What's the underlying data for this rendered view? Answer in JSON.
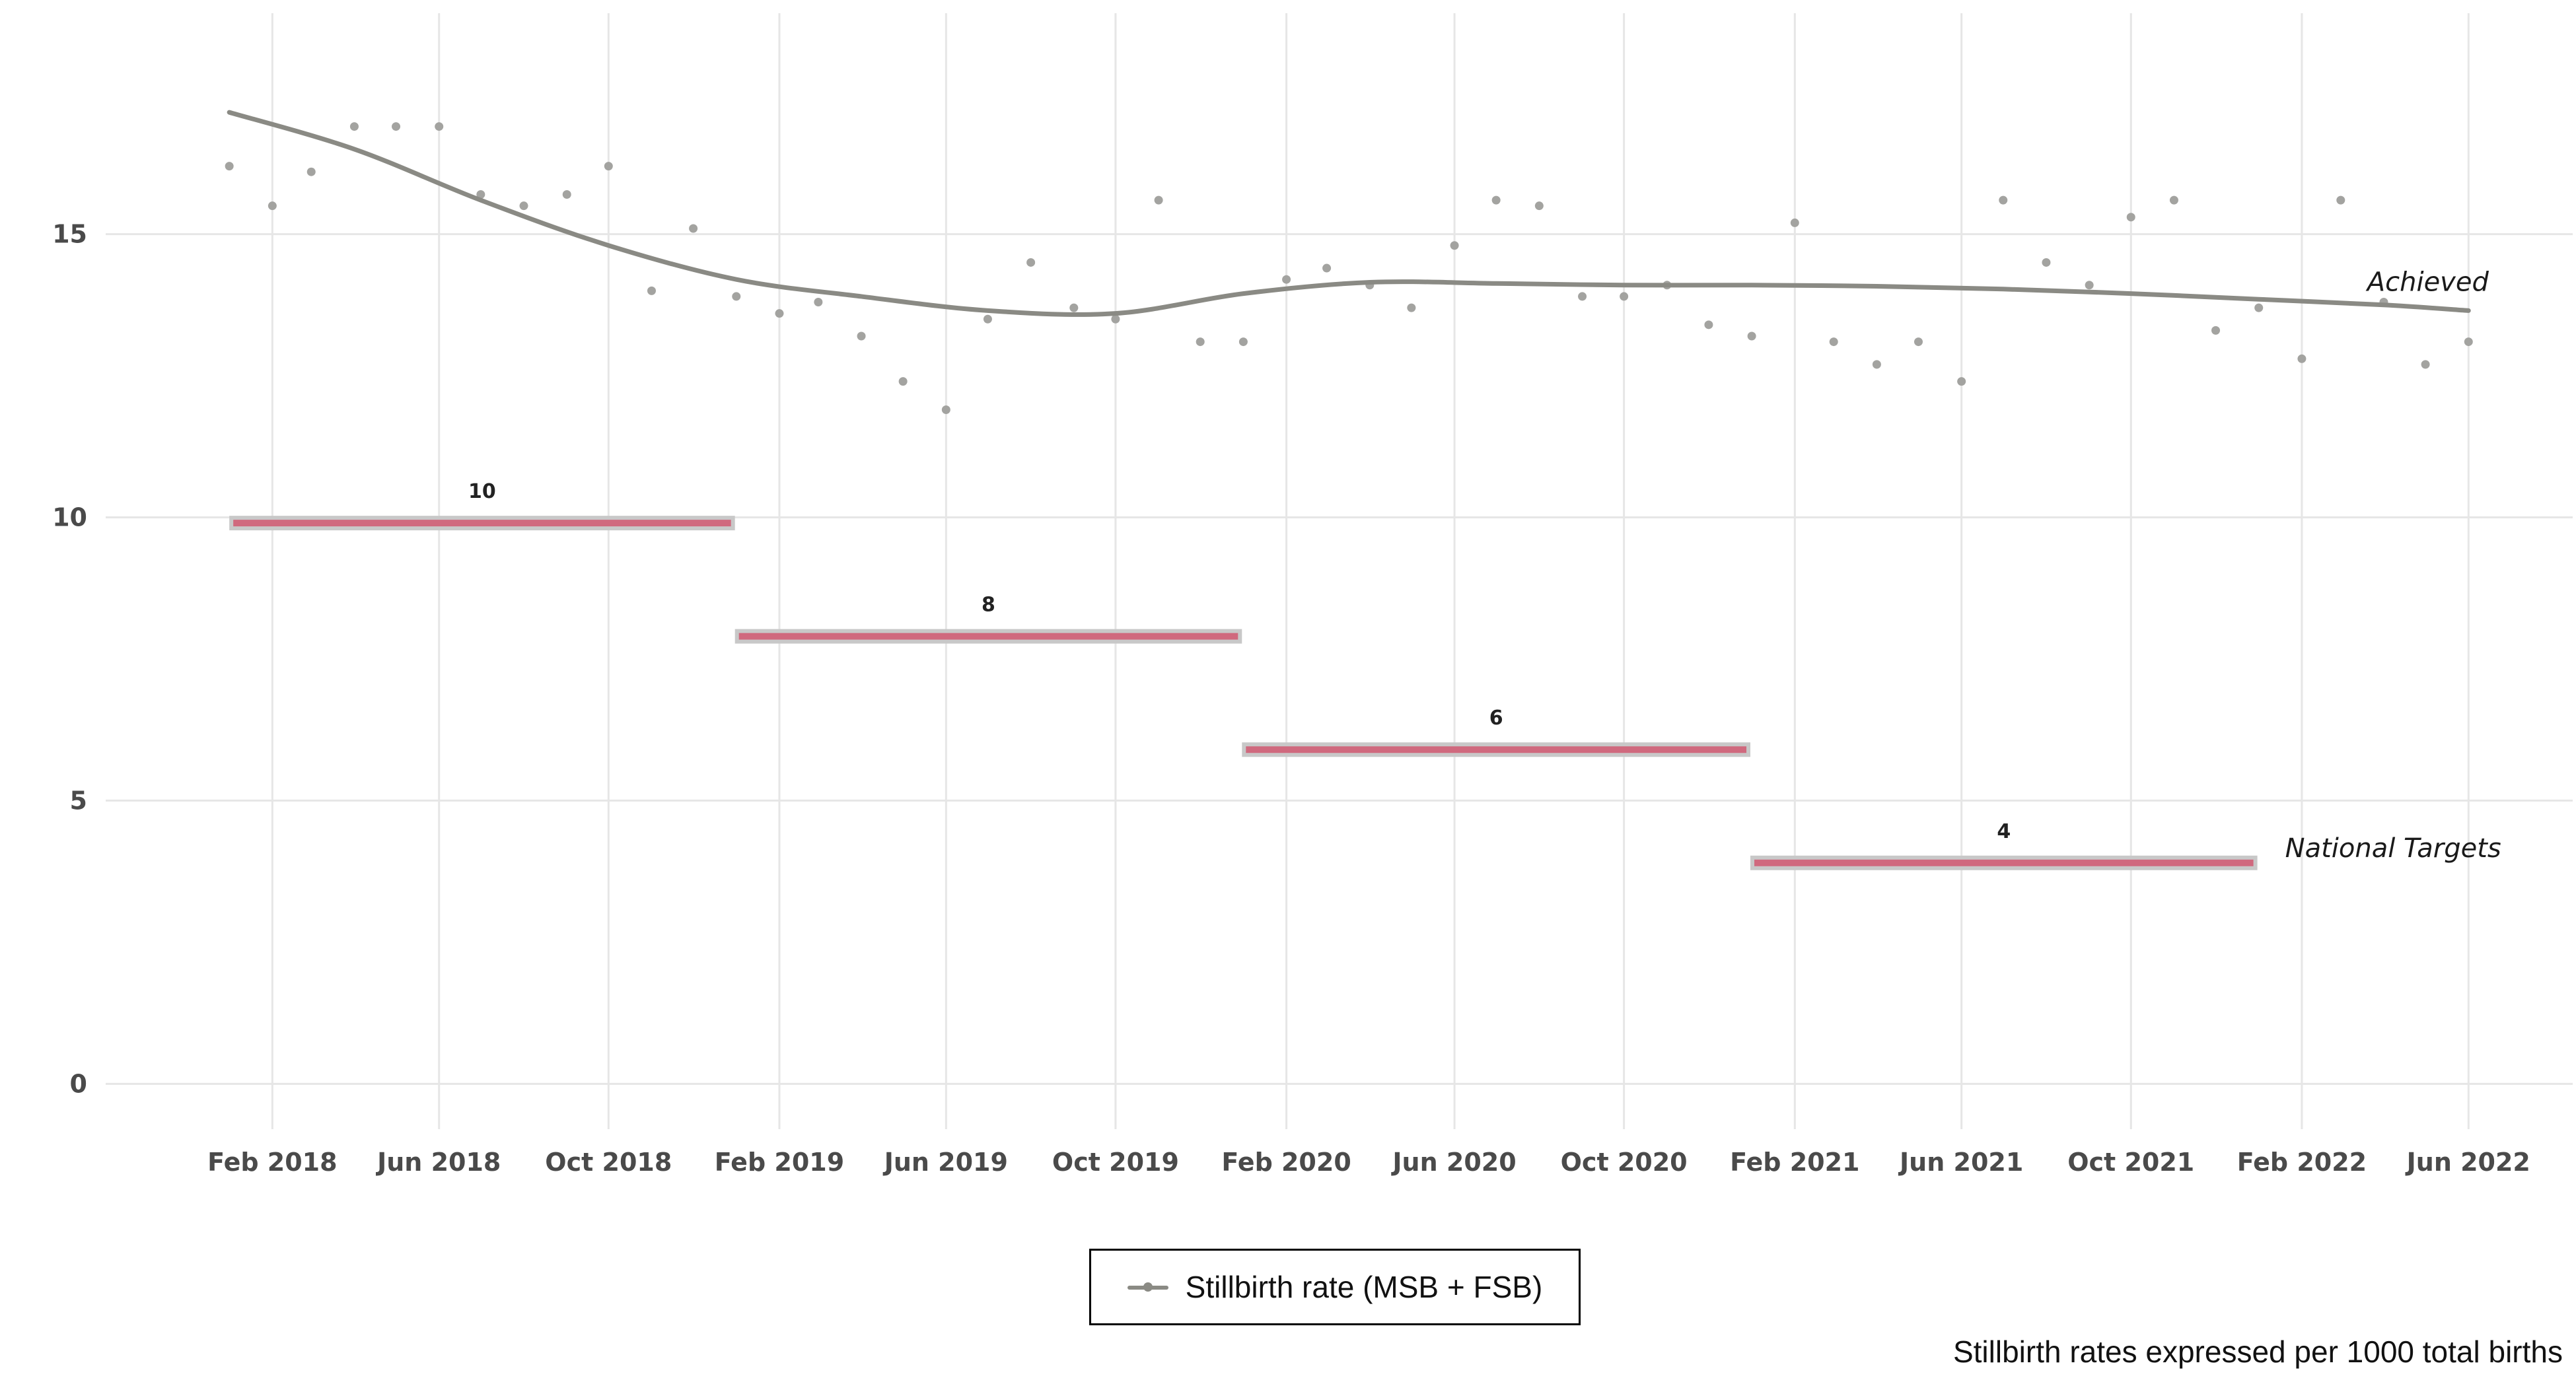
{
  "chart_data": {
    "type": "line",
    "x_axis": {
      "tick_labels": [
        "Feb 2018",
        "Jun 2018",
        "Oct 2018",
        "Feb 2019",
        "Jun 2019",
        "Oct 2019",
        "Feb 2020",
        "Jun 2020",
        "Oct 2020",
        "Feb 2021",
        "Jun 2021",
        "Oct 2021",
        "Feb 2022",
        "Jun 2022"
      ],
      "tick_dates": [
        "2018-02-01",
        "2018-06-01",
        "2018-10-01",
        "2019-02-01",
        "2019-06-01",
        "2019-10-01",
        "2020-02-01",
        "2020-06-01",
        "2020-10-01",
        "2021-02-01",
        "2021-06-01",
        "2021-10-01",
        "2022-02-01",
        "2022-06-01"
      ],
      "range": [
        "2017-10-04",
        "2022-08-15"
      ]
    },
    "y_axis": {
      "ticks": [
        0,
        5,
        10,
        15
      ],
      "ylim": [
        -0.8,
        18.9
      ]
    },
    "grid": true,
    "series": [
      {
        "name": "Stillbirth rate (MSB + FSB)",
        "color": "#8a8a84",
        "points": [
          {
            "x": "2018-01-01",
            "y": 16.2
          },
          {
            "x": "2018-02-01",
            "y": 15.5
          },
          {
            "x": "2018-03-01",
            "y": 16.1
          },
          {
            "x": "2018-04-01",
            "y": 16.9
          },
          {
            "x": "2018-05-01",
            "y": 16.9
          },
          {
            "x": "2018-06-01",
            "y": 16.9
          },
          {
            "x": "2018-07-01",
            "y": 15.7
          },
          {
            "x": "2018-08-01",
            "y": 15.5
          },
          {
            "x": "2018-09-01",
            "y": 15.7
          },
          {
            "x": "2018-10-01",
            "y": 16.2
          },
          {
            "x": "2018-11-01",
            "y": 14.0
          },
          {
            "x": "2018-12-01",
            "y": 15.1
          },
          {
            "x": "2019-01-01",
            "y": 13.9
          },
          {
            "x": "2019-02-01",
            "y": 13.6
          },
          {
            "x": "2019-03-01",
            "y": 13.8
          },
          {
            "x": "2019-04-01",
            "y": 13.2
          },
          {
            "x": "2019-05-01",
            "y": 12.4
          },
          {
            "x": "2019-06-01",
            "y": 11.9
          },
          {
            "x": "2019-07-01",
            "y": 13.5
          },
          {
            "x": "2019-08-01",
            "y": 14.5
          },
          {
            "x": "2019-09-01",
            "y": 13.7
          },
          {
            "x": "2019-10-01",
            "y": 13.5
          },
          {
            "x": "2019-11-01",
            "y": 15.6
          },
          {
            "x": "2019-12-01",
            "y": 13.1
          },
          {
            "x": "2020-01-01",
            "y": 13.1
          },
          {
            "x": "2020-02-01",
            "y": 14.2
          },
          {
            "x": "2020-03-01",
            "y": 14.4
          },
          {
            "x": "2020-04-01",
            "y": 14.1
          },
          {
            "x": "2020-05-01",
            "y": 13.7
          },
          {
            "x": "2020-06-01",
            "y": 14.8
          },
          {
            "x": "2020-07-01",
            "y": 15.6
          },
          {
            "x": "2020-08-01",
            "y": 15.5
          },
          {
            "x": "2020-09-01",
            "y": 13.9
          },
          {
            "x": "2020-10-01",
            "y": 13.9
          },
          {
            "x": "2020-11-01",
            "y": 14.1
          },
          {
            "x": "2020-12-01",
            "y": 13.4
          },
          {
            "x": "2021-01-01",
            "y": 13.2
          },
          {
            "x": "2021-02-01",
            "y": 15.2
          },
          {
            "x": "2021-03-01",
            "y": 13.1
          },
          {
            "x": "2021-04-01",
            "y": 12.7
          },
          {
            "x": "2021-05-01",
            "y": 13.1
          },
          {
            "x": "2021-06-01",
            "y": 12.4
          },
          {
            "x": "2021-07-01",
            "y": 15.6
          },
          {
            "x": "2021-08-01",
            "y": 14.5
          },
          {
            "x": "2021-09-01",
            "y": 14.1
          },
          {
            "x": "2021-10-01",
            "y": 15.3
          },
          {
            "x": "2021-11-01",
            "y": 15.6
          },
          {
            "x": "2021-12-01",
            "y": 13.3
          },
          {
            "x": "2022-01-01",
            "y": 13.7
          },
          {
            "x": "2022-02-01",
            "y": 12.8
          },
          {
            "x": "2022-03-01",
            "y": 15.6
          },
          {
            "x": "2022-04-01",
            "y": 13.8
          },
          {
            "x": "2022-05-01",
            "y": 12.7
          },
          {
            "x": "2022-06-01",
            "y": 13.1
          }
        ],
        "trend": [
          {
            "x": "2018-01-01",
            "y": 17.15
          },
          {
            "x": "2018-04-01",
            "y": 16.5
          },
          {
            "x": "2018-07-01",
            "y": 15.6
          },
          {
            "x": "2018-10-01",
            "y": 14.8
          },
          {
            "x": "2019-01-01",
            "y": 14.2
          },
          {
            "x": "2019-04-01",
            "y": 13.9
          },
          {
            "x": "2019-07-01",
            "y": 13.65
          },
          {
            "x": "2019-10-01",
            "y": 13.6
          },
          {
            "x": "2020-01-01",
            "y": 13.95
          },
          {
            "x": "2020-04-01",
            "y": 14.15
          },
          {
            "x": "2020-07-01",
            "y": 14.13
          },
          {
            "x": "2020-10-01",
            "y": 14.1
          },
          {
            "x": "2021-01-01",
            "y": 14.1
          },
          {
            "x": "2021-04-01",
            "y": 14.08
          },
          {
            "x": "2021-07-01",
            "y": 14.03
          },
          {
            "x": "2021-10-01",
            "y": 13.95
          },
          {
            "x": "2022-01-01",
            "y": 13.85
          },
          {
            "x": "2022-04-01",
            "y": 13.75
          },
          {
            "x": "2022-06-01",
            "y": 13.65
          }
        ]
      }
    ],
    "targets": [
      {
        "label": "10",
        "value": 9.9,
        "start": "2018-01-01",
        "end": "2018-12-31"
      },
      {
        "label": "8",
        "value": 7.9,
        "start": "2018-12-31",
        "end": "2019-12-31"
      },
      {
        "label": "6",
        "value": 5.9,
        "start": "2019-12-31",
        "end": "2020-12-31"
      },
      {
        "label": "4",
        "value": 3.9,
        "start": "2020-12-31",
        "end": "2021-12-31"
      }
    ],
    "target_color": "#d0697e",
    "target_halo_color": "#c8c8c8",
    "annotations": [
      {
        "text": "Achieved",
        "x": "2022-03-20",
        "y": 14.0
      },
      {
        "text": "National Targets",
        "x": "2022-01-20",
        "y": 4.0
      }
    ],
    "legend": {
      "label": "Stillbirth rate (MSB + FSB)",
      "position": "bottom"
    },
    "caption": "Stillbirth rates expressed per 1000 total births"
  }
}
